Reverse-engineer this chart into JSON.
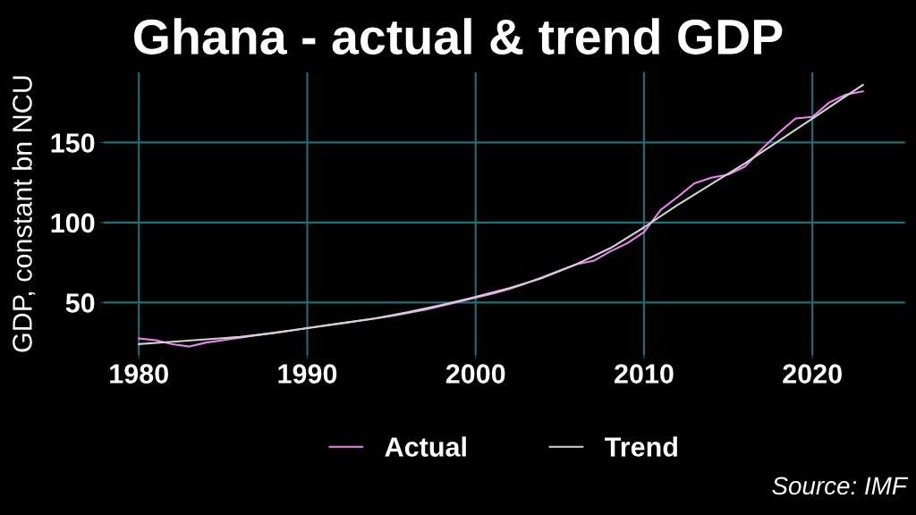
{
  "chart_data": {
    "type": "line",
    "title": "Ghana - actual & trend GDP",
    "ylabel": "GDP, constant bn NCU",
    "series": [
      {
        "name": "Actual",
        "color": "#ee82ee",
        "x": [
          1980,
          1981,
          1982,
          1983,
          1984,
          1985,
          1986,
          1987,
          1988,
          1989,
          1990,
          1991,
          1992,
          1993,
          1994,
          1995,
          1996,
          1997,
          1998,
          1999,
          2000,
          2001,
          2002,
          2003,
          2004,
          2005,
          2006,
          2007,
          2008,
          2009,
          2010,
          2011,
          2012,
          2013,
          2014,
          2015,
          2016,
          2017,
          2018,
          2019,
          2020,
          2021,
          2022,
          2023
        ],
        "values": [
          27.5,
          26.5,
          24,
          22.5,
          25,
          26.5,
          28,
          29.5,
          31,
          32.5,
          34,
          35.5,
          37,
          38.5,
          40,
          41.5,
          43.5,
          45.5,
          48,
          50.5,
          53,
          55.5,
          58.5,
          62,
          66,
          70,
          74,
          76,
          82,
          87,
          94,
          108,
          116,
          124.5,
          128,
          130,
          135,
          146,
          156,
          165,
          166,
          175,
          180,
          182
        ]
      },
      {
        "name": "Trend",
        "color": "#d3d3d3",
        "x": [
          1980,
          1982,
          1984,
          1986,
          1988,
          1990,
          1992,
          1994,
          1996,
          1998,
          2000,
          2002,
          2004,
          2006,
          2008,
          2010,
          2012,
          2014,
          2016,
          2018,
          2020,
          2022,
          2023
        ],
        "values": [
          24,
          25.5,
          27,
          28.5,
          31,
          34,
          37,
          40,
          44,
          48.5,
          53.5,
          59,
          65.5,
          74,
          84,
          97,
          111,
          124,
          137,
          151,
          165,
          179,
          186
        ]
      }
    ],
    "xlim": [
      1977.9,
      2025.5
    ],
    "xticks": [
      1980,
      1990,
      2000,
      2010,
      2020
    ],
    "ylim": [
      17,
      194
    ],
    "yticks": [
      50,
      100,
      150
    ],
    "grid": true,
    "legend": "bottom",
    "line_style": "solid",
    "marker": "none",
    "annotations": [
      "Source: IMF"
    ]
  }
}
